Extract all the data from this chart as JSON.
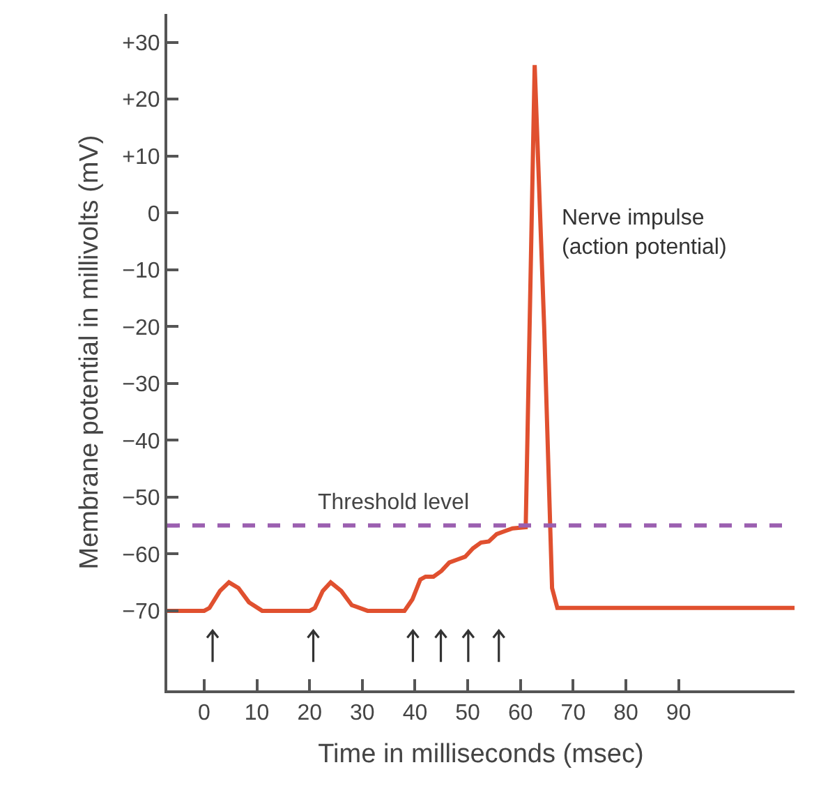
{
  "chart_data": {
    "type": "line",
    "xlabel": "Time in milliseconds (msec)",
    "ylabel": "Membrane potential in millivolts (mV)",
    "series": [
      {
        "color": "#e0502f",
        "x": [
          -7,
          0,
          1,
          3,
          4.7,
          6.5,
          8.5,
          11,
          20,
          21,
          22.5,
          24,
          26,
          28,
          31,
          38,
          39.5,
          41,
          42,
          43.5,
          45,
          46.5,
          48,
          49.5,
          51,
          52.5,
          54,
          55.5,
          57,
          58.5,
          61,
          62.7,
          64.5,
          66,
          67,
          112
        ],
        "values": [
          -70,
          -70,
          -69.5,
          -66.5,
          -65,
          -66,
          -68.5,
          -70,
          -70,
          -69.5,
          -66.5,
          -65,
          -66.5,
          -69,
          -70,
          -70,
          -68,
          -64.5,
          -64,
          -64,
          -63,
          -61.5,
          -61,
          -60.5,
          -59,
          -58,
          -57.8,
          -56.5,
          -56,
          -55.5,
          -55.3,
          26,
          -20,
          -66,
          -69.5,
          -69.5
        ]
      }
    ],
    "xlim": [
      -7,
      112
    ],
    "ylim": [
      -84,
      35
    ],
    "xticks": [
      0,
      10,
      20,
      30,
      40,
      50,
      60,
      70,
      80,
      90
    ],
    "yticks": [
      {
        "value": 30,
        "label": "+30"
      },
      {
        "value": 20,
        "label": "+20"
      },
      {
        "value": 10,
        "label": "+10"
      },
      0,
      {
        "value": -10,
        "label": "−10"
      },
      {
        "value": -20,
        "label": "−20"
      },
      {
        "value": -30,
        "label": "−30"
      },
      {
        "value": -40,
        "label": "−40"
      },
      {
        "value": -50,
        "label": "−50"
      },
      {
        "value": -60,
        "label": "−60"
      },
      {
        "value": -70,
        "label": "−70"
      }
    ],
    "ref_lines": [
      {
        "axis": "y",
        "value": -55,
        "label": "Threshold level",
        "color": "#9b5fb0",
        "line_style": "dashed"
      }
    ],
    "annotations": [
      "Nerve impulse\n(action potential)"
    ],
    "grid": false,
    "marker": "none",
    "line_style": "solid"
  }
}
